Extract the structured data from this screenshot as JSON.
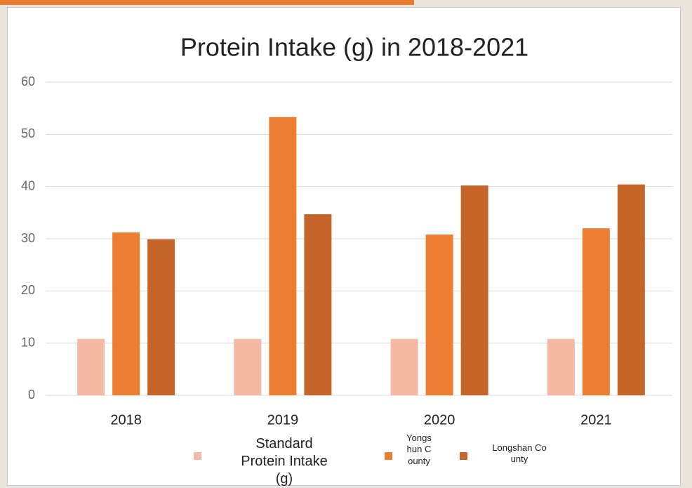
{
  "chart_data": {
    "type": "bar",
    "title": "Protein Intake (g) in 2018-2021",
    "categories": [
      "2018",
      "2019",
      "2020",
      "2021"
    ],
    "series": [
      {
        "name": "Standard Protein Intake (g)",
        "color": "#f4b8a3",
        "values": [
          10.8,
          10.8,
          10.8,
          10.8
        ]
      },
      {
        "name": "Yongshun County",
        "color": "#ed7d31",
        "values": [
          31.2,
          53.3,
          30.8,
          32.0
        ]
      },
      {
        "name": "Longshan County",
        "color": "#c5652a",
        "values": [
          29.9,
          34.7,
          40.2,
          40.4
        ]
      }
    ],
    "ylim": [
      0,
      60
    ],
    "yticks": [
      0,
      10,
      20,
      30,
      40,
      50,
      60
    ],
    "grid": true,
    "legend": "bottom"
  }
}
